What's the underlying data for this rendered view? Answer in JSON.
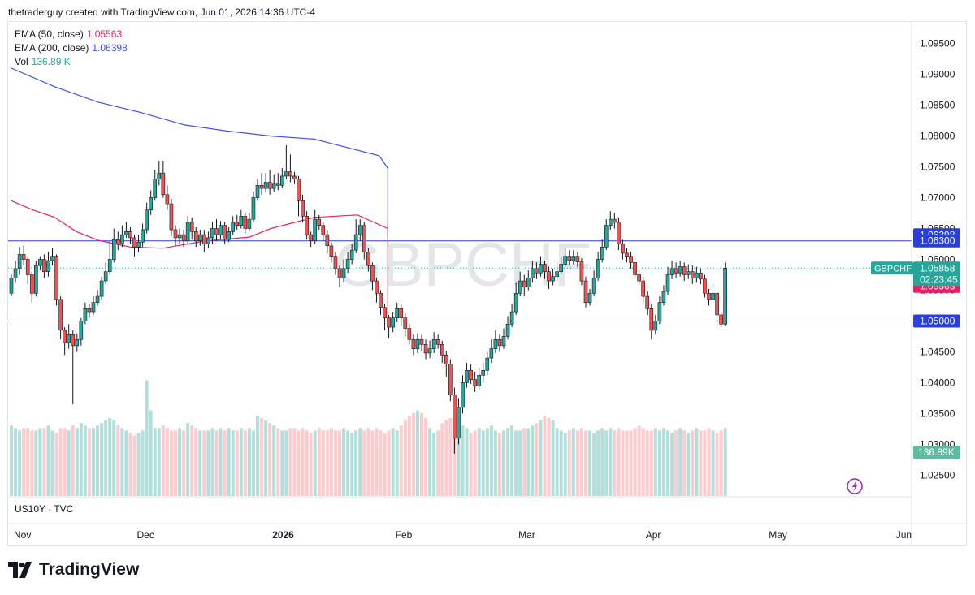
{
  "attribution": "thetraderguy created with TradingView.com, Jun 01, 2026 14:36 UTC-4",
  "symbol_watermark": "GBPCHF",
  "legend": {
    "ema50": {
      "label": "EMA (50, close)",
      "value": "1.05563",
      "color": "#e91e63"
    },
    "ema200": {
      "label": "EMA (200, close)",
      "value": "1.06398",
      "color": "#3f51e6"
    },
    "vol": {
      "label": "Vol",
      "value": "136.89 K",
      "color": "#26a69a"
    }
  },
  "lower_pane_label": "US10Y · TVC",
  "branding": "TradingView",
  "price_scale_labels": {
    "ema200": "1.06398",
    "resistance": "1.06300",
    "symbol": "GBPCHF",
    "last_price": "1.05858",
    "countdown": "02:23:45",
    "ema50": "1.05563",
    "support": "1.05000",
    "volume": "136.89K"
  },
  "chart_data": {
    "type": "candlestick",
    "symbol": "GBPCHF",
    "timeframe": "1D",
    "ylim": [
      1.0215,
      1.0985
    ],
    "y_ticks": [
      "1.09500",
      "1.09000",
      "1.08500",
      "1.08000",
      "1.07500",
      "1.07000",
      "1.06500",
      "1.06000",
      "1.05500",
      "1.05000",
      "1.04500",
      "1.04000",
      "1.03500",
      "1.03000",
      "1.02500"
    ],
    "x_ticks": [
      "Nov",
      "Dec",
      "2026",
      "Feb",
      "Mar",
      "Apr",
      "May",
      "Jun"
    ],
    "x_tick_index": [
      0,
      30,
      63,
      93,
      123,
      154,
      184,
      215
    ],
    "horizontal_lines": [
      1.063,
      1.05
    ],
    "last_price": 1.05858,
    "ema50_last": 1.05563,
    "ema200_last": 1.06398,
    "colors": {
      "up": "#26a69a",
      "down": "#ef5350",
      "ema50": "#e91e63",
      "ema200": "#3f51e6",
      "hline": "#2b3fd6",
      "vol_up": "#b2dfdb",
      "vol_down": "#fccbcd"
    },
    "ema200_path": [
      [
        0,
        1.091
      ],
      [
        20,
        1.088
      ],
      [
        40,
        1.0855
      ],
      [
        60,
        1.0838
      ],
      [
        80,
        1.0818
      ],
      [
        100,
        1.0808
      ],
      [
        120,
        1.08
      ],
      [
        140,
        1.0795
      ],
      [
        150,
        1.0786
      ],
      [
        170,
        1.0768
      ],
      [
        180,
        1.0748
      ],
      [
        190,
        1.073
      ],
      [
        200,
        1.0712
      ],
      [
        210,
        1.0702
      ],
      [
        220,
        1.0693
      ],
      [
        230,
        1.0689
      ],
      [
        240,
        1.0683
      ],
      [
        250,
        1.0678
      ],
      [
        260,
        1.0672
      ],
      [
        270,
        1.0668
      ],
      [
        280,
        1.0663
      ],
      [
        290,
        1.0659
      ],
      [
        300,
        1.0654
      ],
      [
        310,
        1.0649
      ],
      [
        320,
        1.0643
      ],
      [
        330,
        1.0637
      ]
    ],
    "ema50_path": [
      [
        0,
        1.0695
      ],
      [
        10,
        1.068
      ],
      [
        20,
        1.0668
      ],
      [
        30,
        1.0645
      ],
      [
        40,
        1.0631
      ],
      [
        55,
        1.062
      ],
      [
        70,
        1.0618
      ],
      [
        90,
        1.063
      ],
      [
        110,
        1.0636
      ],
      [
        120,
        1.065
      ],
      [
        140,
        1.0668
      ],
      [
        160,
        1.0672
      ],
      [
        180,
        1.065
      ],
      [
        200,
        1.0605
      ],
      [
        220,
        1.0565
      ],
      [
        240,
        1.0528
      ],
      [
        260,
        1.051
      ],
      [
        280,
        1.0512
      ],
      [
        290,
        1.0522
      ],
      [
        300,
        1.0535
      ],
      [
        310,
        1.0545
      ],
      [
        320,
        1.0552
      ],
      [
        330,
        1.0556
      ]
    ],
    "candles": [
      [
        1.0545,
        1.057,
        1.0575,
        1.054
      ],
      [
        1.057,
        1.0585,
        1.0598,
        1.0562
      ],
      [
        1.0585,
        1.0608,
        1.062,
        1.0575
      ],
      [
        1.0608,
        1.06,
        1.0622,
        1.059
      ],
      [
        1.06,
        1.0575,
        1.0605,
        1.056
      ],
      [
        1.0575,
        1.0545,
        1.058,
        1.053
      ],
      [
        1.0545,
        1.059,
        1.0598,
        1.054
      ],
      [
        1.059,
        1.06,
        1.0605,
        1.0582
      ],
      [
        1.06,
        1.058,
        1.0608,
        1.057
      ],
      [
        1.058,
        1.0598,
        1.0612,
        1.0572
      ],
      [
        1.0598,
        1.0605,
        1.0618,
        1.059
      ],
      [
        1.0605,
        1.0535,
        1.0608,
        1.0525
      ],
      [
        1.0535,
        1.0485,
        1.054,
        1.047
      ],
      [
        1.0485,
        1.0465,
        1.049,
        1.0445
      ],
      [
        1.0465,
        1.0478,
        1.0495,
        1.0455
      ],
      [
        1.0478,
        1.046,
        1.0485,
        1.0365
      ],
      [
        1.046,
        1.047,
        1.048,
        1.045
      ],
      [
        1.047,
        1.05,
        1.0505,
        1.046
      ],
      [
        1.05,
        1.052,
        1.053,
        1.0495
      ],
      [
        1.052,
        1.0515,
        1.0528,
        1.0505
      ],
      [
        1.0515,
        1.053,
        1.054,
        1.051
      ],
      [
        1.053,
        1.054,
        1.055,
        1.0525
      ],
      [
        1.054,
        1.0565,
        1.0572,
        1.0535
      ],
      [
        1.0565,
        1.058,
        1.0595,
        1.056
      ],
      [
        1.058,
        1.06,
        1.063,
        1.0575
      ],
      [
        1.06,
        1.0632,
        1.065,
        1.0595
      ],
      [
        1.0632,
        1.0625,
        1.0645,
        1.0615
      ],
      [
        1.0625,
        1.064,
        1.0655,
        1.062
      ],
      [
        1.064,
        1.0645,
        1.066,
        1.0635
      ],
      [
        1.0645,
        1.0635,
        1.0652,
        1.0625
      ],
      [
        1.0635,
        1.062,
        1.064,
        1.0605
      ],
      [
        1.062,
        1.0628,
        1.064,
        1.0612
      ],
      [
        1.0628,
        1.0648,
        1.0658,
        1.062
      ],
      [
        1.0648,
        1.068,
        1.0692,
        1.0642
      ],
      [
        1.068,
        1.07,
        1.0712,
        1.0672
      ],
      [
        1.07,
        1.073,
        1.0745,
        1.0695
      ],
      [
        1.073,
        1.074,
        1.076,
        1.072
      ],
      [
        1.074,
        1.0705,
        1.076,
        1.07
      ],
      [
        1.0705,
        1.069,
        1.072,
        1.068
      ],
      [
        1.069,
        1.0648,
        1.0698,
        1.0638
      ],
      [
        1.0648,
        1.0635,
        1.0655,
        1.0622
      ],
      [
        1.0635,
        1.064,
        1.065,
        1.0625
      ],
      [
        1.064,
        1.063,
        1.0648,
        1.062
      ],
      [
        1.063,
        1.066,
        1.067,
        1.0625
      ],
      [
        1.066,
        1.0645,
        1.0668,
        1.0632
      ],
      [
        1.0645,
        1.063,
        1.0652,
        1.062
      ],
      [
        1.063,
        1.064,
        1.0648,
        1.0622
      ],
      [
        1.064,
        1.0625,
        1.0648,
        1.0612
      ],
      [
        1.0625,
        1.0635,
        1.0645,
        1.0618
      ],
      [
        1.0635,
        1.065,
        1.066,
        1.0625
      ],
      [
        1.065,
        1.064,
        1.0665,
        1.063
      ],
      [
        1.064,
        1.0655,
        1.0662,
        1.0632
      ],
      [
        1.0655,
        1.0632,
        1.066,
        1.0625
      ],
      [
        1.0632,
        1.0645,
        1.0652,
        1.0628
      ],
      [
        1.0645,
        1.066,
        1.067,
        1.064
      ],
      [
        1.066,
        1.0655,
        1.0672,
        1.0648
      ],
      [
        1.0655,
        1.067,
        1.068,
        1.065
      ],
      [
        1.067,
        1.065,
        1.0675,
        1.0642
      ],
      [
        1.065,
        1.0665,
        1.0675,
        1.0645
      ],
      [
        1.0665,
        1.07,
        1.071,
        1.066
      ],
      [
        1.07,
        1.072,
        1.073,
        1.0695
      ],
      [
        1.072,
        1.0715,
        1.074,
        1.0705
      ],
      [
        1.0715,
        1.0725,
        1.074,
        1.0708
      ],
      [
        1.0725,
        1.0715,
        1.0745,
        1.0705
      ],
      [
        1.0715,
        1.0722,
        1.0738,
        1.071
      ],
      [
        1.0722,
        1.072,
        1.074,
        1.0712
      ],
      [
        1.072,
        1.0735,
        1.0748,
        1.0715
      ],
      [
        1.0735,
        1.0742,
        1.0785,
        1.073
      ],
      [
        1.0742,
        1.0735,
        1.077,
        1.0725
      ],
      [
        1.0735,
        1.073,
        1.0742,
        1.0722
      ],
      [
        1.073,
        1.0695,
        1.0735,
        1.067
      ],
      [
        1.0695,
        1.067,
        1.0705,
        1.066
      ],
      [
        1.067,
        1.064,
        1.0678,
        1.0632
      ],
      [
        1.064,
        1.063,
        1.0645,
        1.062
      ],
      [
        1.063,
        1.0665,
        1.068,
        1.0625
      ],
      [
        1.0665,
        1.0655,
        1.0672,
        1.0648
      ],
      [
        1.0655,
        1.064,
        1.066,
        1.063
      ],
      [
        1.064,
        1.0622,
        1.0648,
        1.061
      ],
      [
        1.0622,
        1.0605,
        1.0628,
        1.0595
      ],
      [
        1.0605,
        1.0585,
        1.0612,
        1.0575
      ],
      [
        1.0585,
        1.057,
        1.059,
        1.0555
      ],
      [
        1.057,
        1.0585,
        1.06,
        1.0562
      ],
      [
        1.0585,
        1.06,
        1.0612,
        1.0578
      ],
      [
        1.06,
        1.0615,
        1.0625,
        1.0592
      ],
      [
        1.0615,
        1.064,
        1.0665,
        1.061
      ],
      [
        1.064,
        1.0655,
        1.0665,
        1.063
      ],
      [
        1.0655,
        1.0612,
        1.066,
        1.06
      ],
      [
        1.0612,
        1.059,
        1.0618,
        1.058
      ],
      [
        1.059,
        1.0565,
        1.0595,
        1.055
      ],
      [
        1.0565,
        1.0545,
        1.057,
        1.053
      ],
      [
        1.0545,
        1.0522,
        1.055,
        1.051
      ],
      [
        1.0522,
        1.0505,
        1.0528,
        1.0485
      ],
      [
        1.0505,
        1.049,
        1.051,
        1.0472
      ],
      [
        1.049,
        1.0505,
        1.0515,
        1.0482
      ],
      [
        1.0505,
        1.052,
        1.053,
        1.0498
      ],
      [
        1.052,
        1.0505,
        1.0528,
        1.0492
      ],
      [
        1.0505,
        1.0488,
        1.0512,
        1.0475
      ],
      [
        1.0488,
        1.047,
        1.0495,
        1.0462
      ],
      [
        1.047,
        1.0455,
        1.0478,
        1.0445
      ],
      [
        1.0455,
        1.047,
        1.048,
        1.0448
      ],
      [
        1.047,
        1.0462,
        1.0478,
        1.0452
      ],
      [
        1.0462,
        1.0448,
        1.047,
        1.0438
      ],
      [
        1.0448,
        1.0455,
        1.0468,
        1.044
      ],
      [
        1.0455,
        1.047,
        1.0482,
        1.0448
      ],
      [
        1.047,
        1.0462,
        1.0478,
        1.0455
      ],
      [
        1.0462,
        1.0445,
        1.0468,
        1.0432
      ],
      [
        1.0445,
        1.043,
        1.0452,
        1.041
      ],
      [
        1.043,
        1.038,
        1.0438,
        1.037
      ],
      [
        1.038,
        1.031,
        1.0392,
        1.0285
      ],
      [
        1.031,
        1.036,
        1.0375,
        1.03
      ],
      [
        1.036,
        1.04,
        1.0412,
        1.035
      ],
      [
        1.04,
        1.042,
        1.0432,
        1.0392
      ],
      [
        1.042,
        1.0405,
        1.043,
        1.0398
      ],
      [
        1.0405,
        1.0395,
        1.0418,
        1.0385
      ],
      [
        1.0395,
        1.0412,
        1.0425,
        1.0388
      ],
      [
        1.0412,
        1.042,
        1.0432,
        1.04
      ],
      [
        1.042,
        1.044,
        1.045,
        1.0412
      ],
      [
        1.044,
        1.0455,
        1.047,
        1.0432
      ],
      [
        1.0455,
        1.047,
        1.0485,
        1.0448
      ],
      [
        1.047,
        1.046,
        1.0478,
        1.045
      ],
      [
        1.046,
        1.0475,
        1.0488,
        1.0455
      ],
      [
        1.0475,
        1.0495,
        1.0508,
        1.047
      ],
      [
        1.0495,
        1.0515,
        1.0528,
        1.049
      ],
      [
        1.0515,
        1.0545,
        1.0562,
        1.051
      ],
      [
        1.0545,
        1.0565,
        1.058,
        1.054
      ],
      [
        1.0565,
        1.0555,
        1.0575,
        1.054
      ],
      [
        1.0555,
        1.057,
        1.0582,
        1.055
      ],
      [
        1.057,
        1.0585,
        1.0598,
        1.0562
      ],
      [
        1.0585,
        1.0578,
        1.0595,
        1.0568
      ],
      [
        1.0578,
        1.0592,
        1.0605,
        1.0572
      ],
      [
        1.0592,
        1.058,
        1.0598,
        1.0568
      ],
      [
        1.058,
        1.0565,
        1.0588,
        1.0552
      ],
      [
        1.0565,
        1.0572,
        1.0585,
        1.0558
      ],
      [
        1.0572,
        1.058,
        1.0595,
        1.0565
      ],
      [
        1.058,
        1.0592,
        1.0605,
        1.0575
      ],
      [
        1.0592,
        1.0605,
        1.0618,
        1.0588
      ],
      [
        1.0605,
        1.0598,
        1.0615,
        1.059
      ],
      [
        1.0598,
        1.0605,
        1.0615,
        1.0592
      ],
      [
        1.0605,
        1.0596,
        1.0612,
        1.0588
      ],
      [
        1.0596,
        1.0565,
        1.0602,
        1.0558
      ],
      [
        1.0565,
        1.053,
        1.0572,
        1.0522
      ],
      [
        1.053,
        1.0545,
        1.0552,
        1.0525
      ],
      [
        1.0545,
        1.057,
        1.0582,
        1.054
      ],
      [
        1.057,
        1.06,
        1.0612,
        1.0565
      ],
      [
        1.06,
        1.062,
        1.0632,
        1.0595
      ],
      [
        1.062,
        1.0655,
        1.0665,
        1.0615
      ],
      [
        1.0655,
        1.0665,
        1.0678,
        1.0648
      ],
      [
        1.0665,
        1.066,
        1.0675,
        1.065
      ],
      [
        1.066,
        1.0625,
        1.0668,
        1.0615
      ],
      [
        1.0625,
        1.061,
        1.0632,
        1.06
      ],
      [
        1.061,
        1.0605,
        1.0618,
        1.0595
      ],
      [
        1.0605,
        1.0595,
        1.0612,
        1.0585
      ],
      [
        1.0595,
        1.0575,
        1.0602,
        1.0568
      ],
      [
        1.0575,
        1.0565,
        1.0582,
        1.0558
      ],
      [
        1.0565,
        1.054,
        1.0572,
        1.053
      ],
      [
        1.054,
        1.052,
        1.0548,
        1.051
      ],
      [
        1.052,
        1.0485,
        1.0528,
        1.047
      ],
      [
        1.0485,
        1.05,
        1.051,
        1.0478
      ],
      [
        1.05,
        1.053,
        1.054,
        1.0495
      ],
      [
        1.053,
        1.0548,
        1.0558,
        1.0525
      ],
      [
        1.0548,
        1.0575,
        1.0588,
        1.0542
      ],
      [
        1.0575,
        1.0585,
        1.0598,
        1.0568
      ],
      [
        1.0585,
        1.0578,
        1.0595,
        1.057
      ],
      [
        1.0578,
        1.0588,
        1.0598,
        1.0572
      ],
      [
        1.0588,
        1.0575,
        1.0595,
        1.0565
      ],
      [
        1.0575,
        1.058,
        1.0592,
        1.0568
      ],
      [
        1.058,
        1.057,
        1.059,
        1.056
      ],
      [
        1.057,
        1.0578,
        1.0588,
        1.0562
      ],
      [
        1.0578,
        1.0568,
        1.0585,
        1.056
      ],
      [
        1.0568,
        1.0545,
        1.0575,
        1.0538
      ],
      [
        1.0545,
        1.0535,
        1.0552,
        1.0525
      ],
      [
        1.0535,
        1.0545,
        1.0562,
        1.053
      ],
      [
        1.0545,
        1.051,
        1.055,
        1.0492
      ],
      [
        1.051,
        1.0495,
        1.0515,
        1.049
      ],
      [
        1.0495,
        1.05858,
        1.0595,
        1.0493
      ]
    ],
    "volume": [
      28,
      27,
      26,
      27,
      27,
      26,
      26,
      27,
      27,
      28,
      26,
      25,
      27,
      27,
      26,
      28,
      27,
      29,
      28,
      27,
      27,
      28,
      29,
      30,
      31,
      30,
      28,
      27,
      26,
      25,
      24,
      25,
      26,
      46,
      34,
      27,
      27,
      28,
      27,
      26,
      26,
      27,
      26,
      29,
      28,
      27,
      26,
      26,
      26,
      27,
      26,
      27,
      26,
      27,
      26,
      26,
      27,
      26,
      27,
      26,
      32,
      31,
      30,
      29,
      28,
      27,
      26,
      26,
      27,
      27,
      26,
      27,
      26,
      25,
      26,
      27,
      26,
      26,
      27,
      26,
      26,
      27,
      26,
      25,
      26,
      27,
      26,
      27,
      26,
      27,
      26,
      25,
      26,
      27,
      26,
      28,
      30,
      32,
      33,
      34,
      33,
      31,
      27,
      25,
      26,
      29,
      30,
      31,
      30,
      32,
      28,
      27,
      25,
      26,
      27,
      26,
      27,
      28,
      26,
      25,
      26,
      27,
      28,
      26,
      26,
      27,
      27,
      28,
      29,
      30,
      32,
      31,
      30,
      27,
      26,
      25,
      26,
      27,
      26,
      27,
      26,
      26,
      25,
      26,
      27,
      26,
      27,
      26,
      27,
      26,
      26,
      26,
      27,
      28,
      27,
      26,
      26,
      27,
      26,
      27,
      26,
      25,
      26,
      27,
      26,
      25,
      26,
      27,
      26,
      26,
      27,
      26,
      25,
      26,
      27,
      26,
      27,
      26,
      26,
      27,
      28,
      27,
      26,
      27,
      28
    ],
    "volume_last": 136.89
  }
}
